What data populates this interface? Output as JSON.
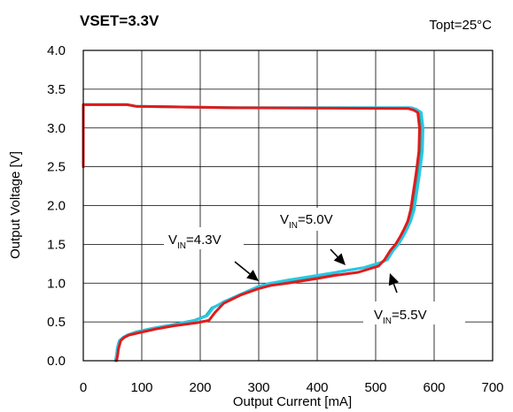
{
  "chart_data": {
    "type": "line",
    "title": "VSET=3.3V",
    "condition": "Topt=25°C",
    "xlabel": "Output Current [mA]",
    "ylabel": "Output Voltage [V]",
    "xlim": [
      0,
      700
    ],
    "ylim": [
      0,
      4.0
    ],
    "x_ticks": [
      0,
      100,
      200,
      300,
      400,
      500,
      600,
      700
    ],
    "y_ticks": [
      0.0,
      0.5,
      1.0,
      1.5,
      2.0,
      2.5,
      3.0,
      3.5,
      4.0
    ],
    "y_tick_labels": [
      "0.0",
      "0.5",
      "1.0",
      "1.5",
      "2.0",
      "2.5",
      "3.0",
      "3.5",
      "4.0"
    ],
    "grid": true,
    "legend": "none",
    "annotations": [
      {
        "prefix": "V",
        "sub": "IN",
        "suffix": "=4.3V",
        "series": "4.3V",
        "points_to": [
          290,
          1.0
        ]
      },
      {
        "prefix": "V",
        "sub": "IN",
        "suffix": "=5.0V",
        "series": "5.0V",
        "points_to": [
          440,
          1.15
        ]
      },
      {
        "prefix": "V",
        "sub": "IN",
        "suffix": "=5.5V",
        "series": "5.5V",
        "points_to": [
          510,
          1.22
        ]
      }
    ],
    "series": [
      {
        "name": "VIN=4.3V",
        "color": "#1fa89a",
        "x": [
          0,
          0,
          75,
          90,
          260,
          560,
          568,
          575,
          578,
          577,
          572,
          567,
          563,
          558,
          552,
          545,
          537,
          528,
          518,
          508,
          480,
          440,
          400,
          350,
          320,
          300,
          270,
          240,
          220,
          210,
          190,
          150,
          120,
          90,
          75,
          68,
          62,
          60,
          58,
          57,
          55
        ],
        "y": [
          2.5,
          3.3,
          3.3,
          3.28,
          3.26,
          3.26,
          3.24,
          3.2,
          3.0,
          2.7,
          2.4,
          2.15,
          1.95,
          1.8,
          1.7,
          1.6,
          1.5,
          1.42,
          1.3,
          1.26,
          1.2,
          1.15,
          1.08,
          1.03,
          1.0,
          0.95,
          0.85,
          0.75,
          0.68,
          0.58,
          0.52,
          0.46,
          0.42,
          0.37,
          0.33,
          0.3,
          0.26,
          0.22,
          0.15,
          0.08,
          0.0
        ]
      },
      {
        "name": "VIN=5.0V",
        "color": "#28c8e6",
        "x": [
          0,
          0,
          75,
          90,
          260,
          562,
          570,
          578,
          581,
          580,
          575,
          570,
          566,
          560,
          554,
          547,
          539,
          530,
          520,
          510,
          480,
          440,
          400,
          350,
          320,
          300,
          270,
          240,
          222,
          212,
          192,
          152,
          122,
          92,
          76,
          68,
          62,
          60,
          58,
          57,
          55
        ],
        "y": [
          2.5,
          3.3,
          3.3,
          3.28,
          3.26,
          3.26,
          3.24,
          3.2,
          3.0,
          2.7,
          2.4,
          2.15,
          1.95,
          1.8,
          1.7,
          1.6,
          1.5,
          1.42,
          1.3,
          1.27,
          1.2,
          1.15,
          1.1,
          1.04,
          1.0,
          0.96,
          0.86,
          0.76,
          0.68,
          0.58,
          0.52,
          0.46,
          0.42,
          0.37,
          0.33,
          0.3,
          0.26,
          0.22,
          0.15,
          0.08,
          0.0
        ]
      },
      {
        "name": "VIN=5.5V",
        "color": "#e01b1b",
        "x": [
          0,
          0,
          75,
          90,
          260,
          556,
          565,
          572,
          575,
          574,
          569,
          564,
          560,
          555,
          549,
          542,
          534,
          525,
          515,
          505,
          470,
          430,
          400,
          350,
          320,
          300,
          270,
          240,
          225,
          215,
          195,
          155,
          125,
          95,
          78,
          70,
          64,
          62,
          60,
          59,
          57
        ],
        "y": [
          2.5,
          3.3,
          3.3,
          3.28,
          3.26,
          3.25,
          3.23,
          3.2,
          3.0,
          2.7,
          2.4,
          2.15,
          1.95,
          1.8,
          1.7,
          1.6,
          1.5,
          1.42,
          1.3,
          1.22,
          1.14,
          1.1,
          1.06,
          1.0,
          0.97,
          0.93,
          0.85,
          0.74,
          0.62,
          0.52,
          0.49,
          0.45,
          0.41,
          0.36,
          0.33,
          0.3,
          0.26,
          0.2,
          0.15,
          0.08,
          0.0
        ]
      }
    ]
  }
}
